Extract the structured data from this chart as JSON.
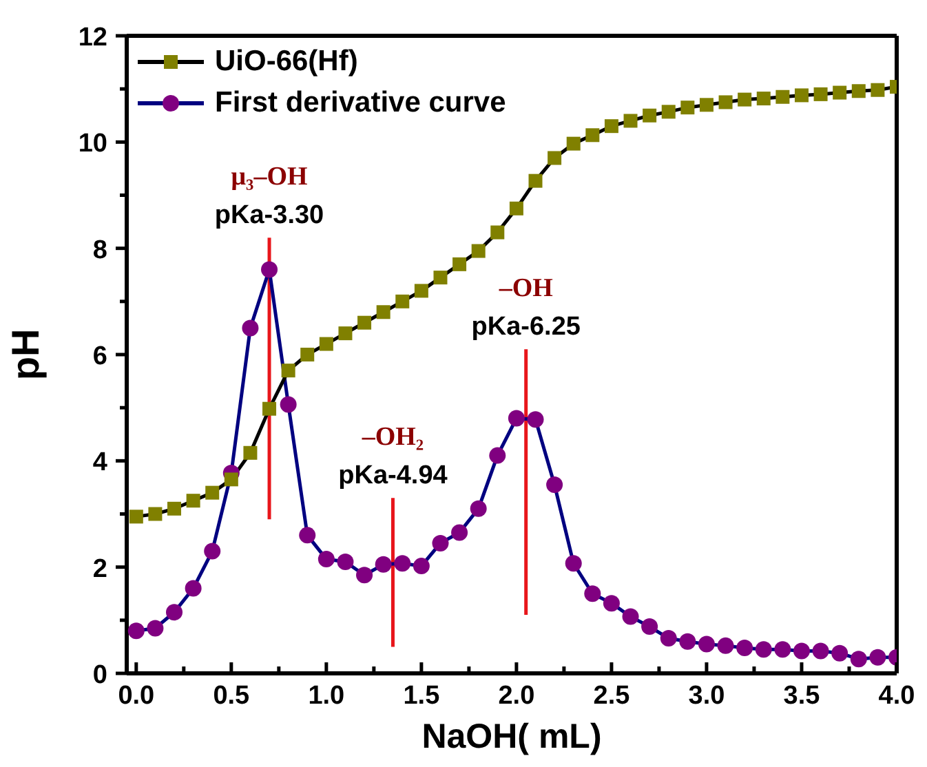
{
  "chart_data": {
    "type": "line",
    "xlabel": "NaOH( mL)",
    "ylabel": "pH",
    "xlim": [
      -0.05,
      4.0
    ],
    "ylim": [
      0,
      12
    ],
    "xticks": [
      {
        "value": 0,
        "label": "0.0"
      },
      {
        "value": 0.25,
        "label": null
      },
      {
        "value": 0.5,
        "label": "0.5"
      },
      {
        "value": 0.75,
        "label": null
      },
      {
        "value": 1,
        "label": "1.0"
      },
      {
        "value": 1.25,
        "label": null
      },
      {
        "value": 1.5,
        "label": "1.5"
      },
      {
        "value": 1.75,
        "label": null
      },
      {
        "value": 2,
        "label": "2.0"
      },
      {
        "value": 2.25,
        "label": null
      },
      {
        "value": 2.5,
        "label": "2.5"
      },
      {
        "value": 2.75,
        "label": null
      },
      {
        "value": 3,
        "label": "3.0"
      },
      {
        "value": 3.25,
        "label": null
      },
      {
        "value": 3.5,
        "label": "3.5"
      },
      {
        "value": 3.75,
        "label": null
      },
      {
        "value": 4,
        "label": "4.0"
      }
    ],
    "yticks": [
      0,
      {
        "value": 1,
        "label": null
      },
      2,
      {
        "value": 3,
        "label": null
      },
      4,
      {
        "value": 5,
        "label": null
      },
      6,
      {
        "value": 7,
        "label": null
      },
      8,
      {
        "value": 9,
        "label": null
      },
      10,
      {
        "value": 11,
        "label": null
      },
      12
    ],
    "legend": "top left",
    "x": [
      0,
      0.1,
      0.2,
      0.3,
      0.4,
      0.5,
      0.6,
      0.7,
      0.8,
      0.9,
      1.0,
      1.1,
      1.2,
      1.3,
      1.4,
      1.5,
      1.6,
      1.7,
      1.8,
      1.9,
      2.0,
      2.1,
      2.2,
      2.3,
      2.4,
      2.5,
      2.6,
      2.7,
      2.8,
      2.9,
      3.0,
      3.1,
      3.2,
      3.3,
      3.4,
      3.5,
      3.6,
      3.7,
      3.8,
      3.9,
      4.0
    ],
    "series": [
      {
        "name": "UiO-66(Hf)",
        "color": "#808000",
        "marker": "square",
        "values": [
          2.95,
          3.0,
          3.1,
          3.25,
          3.4,
          3.65,
          4.15,
          4.98,
          5.7,
          6.0,
          6.2,
          6.4,
          6.6,
          6.8,
          7.0,
          7.2,
          7.45,
          7.7,
          7.95,
          8.3,
          8.75,
          9.27,
          9.7,
          9.97,
          10.13,
          10.3,
          10.4,
          10.5,
          10.57,
          10.65,
          10.7,
          10.75,
          10.8,
          10.82,
          10.85,
          10.88,
          10.9,
          10.93,
          10.96,
          10.98,
          11.04
        ]
      },
      {
        "name": "First derivative curve",
        "color": "#800080",
        "marker": "circle",
        "values": [
          0.8,
          0.85,
          1.15,
          1.6,
          2.3,
          3.77,
          6.5,
          7.6,
          5.06,
          2.6,
          2.15,
          2.1,
          1.85,
          2.05,
          2.07,
          2.02,
          2.45,
          2.65,
          3.1,
          4.1,
          4.8,
          4.78,
          3.55,
          2.07,
          1.5,
          1.32,
          1.07,
          0.88,
          0.66,
          0.6,
          0.55,
          0.52,
          0.48,
          0.45,
          0.45,
          0.42,
          0.42,
          0.38,
          0.27,
          0.3,
          0.3
        ]
      },
      {
        "color": "#e8161b",
        "marker": "none",
        "x": [
          0.7,
          0.7
        ],
        "values": [
          2.9,
          8.2
        ]
      },
      {
        "color": "#e8161b",
        "marker": "none",
        "x": [
          1.35,
          1.35
        ],
        "values": [
          0.5,
          3.3
        ]
      },
      {
        "color": "#e8161b",
        "marker": "none",
        "x": [
          2.05,
          2.05
        ],
        "values": [
          1.1,
          6.1
        ]
      }
    ],
    "annotations": [
      "μ₃–OH",
      "pKa-3.30",
      "–OH₂",
      "pKa-4.94",
      "–OH",
      "pKa-6.25"
    ]
  }
}
